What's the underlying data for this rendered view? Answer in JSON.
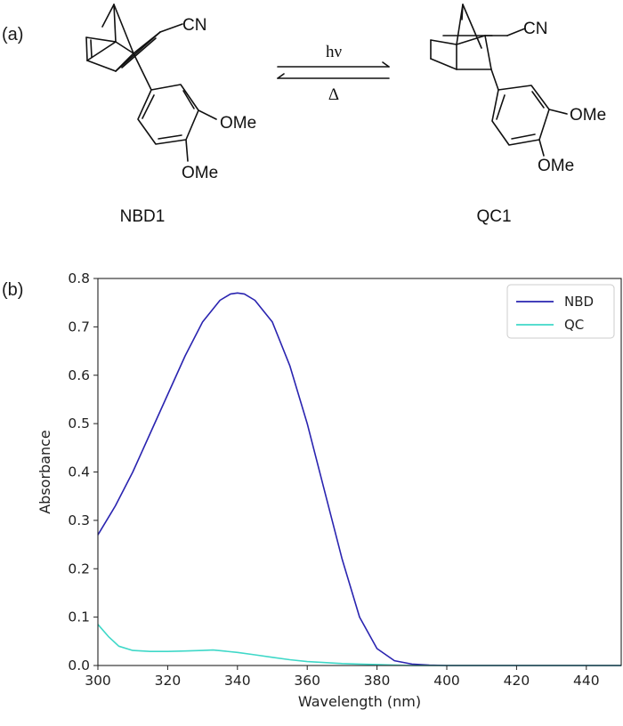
{
  "panel_a": {
    "label": "(a)",
    "left_molecule": {
      "name": "NBD1",
      "substituent_cn": "CN",
      "ome_top": "OMe",
      "ome_bottom": "OMe"
    },
    "right_molecule": {
      "name": "QC1",
      "substituent_cn": "CN",
      "ome_top": "OMe",
      "ome_bottom": "OMe"
    },
    "forward_label": "hν",
    "reverse_label": "Δ"
  },
  "panel_b": {
    "label": "(b)"
  },
  "chart_data": {
    "type": "line",
    "title": "",
    "xlabel": "Wavelength (nm)",
    "ylabel": "Absorbance",
    "xlim": [
      300,
      450
    ],
    "ylim": [
      0.0,
      0.8
    ],
    "xticks": [
      300,
      320,
      340,
      360,
      380,
      400,
      420,
      440
    ],
    "yticks": [
      0.0,
      0.1,
      0.2,
      0.3,
      0.4,
      0.5,
      0.6,
      0.7,
      0.8
    ],
    "legend_position": "top-right",
    "grid": false,
    "series": [
      {
        "name": "NBD",
        "color": "#2a24b0",
        "x": [
          300,
          305,
          310,
          315,
          320,
          325,
          330,
          335,
          338,
          340,
          342,
          345,
          350,
          355,
          360,
          365,
          370,
          375,
          380,
          385,
          390,
          395,
          400,
          410,
          420,
          430,
          440,
          450
        ],
        "y": [
          0.27,
          0.33,
          0.4,
          0.48,
          0.56,
          0.64,
          0.71,
          0.755,
          0.768,
          0.77,
          0.768,
          0.755,
          0.71,
          0.62,
          0.5,
          0.36,
          0.22,
          0.1,
          0.035,
          0.01,
          0.003,
          0.001,
          0.0,
          0.0,
          0.0,
          0.0,
          0.0,
          0.0
        ]
      },
      {
        "name": "QC",
        "color": "#3fd8c8",
        "x": [
          300,
          303,
          306,
          310,
          315,
          320,
          325,
          330,
          333,
          336,
          340,
          345,
          350,
          355,
          360,
          365,
          370,
          375,
          380,
          385,
          390,
          400,
          420,
          450
        ],
        "y": [
          0.085,
          0.06,
          0.04,
          0.031,
          0.029,
          0.029,
          0.03,
          0.031,
          0.032,
          0.03,
          0.027,
          0.022,
          0.017,
          0.012,
          0.008,
          0.006,
          0.004,
          0.003,
          0.002,
          0.001,
          0.0,
          0.0,
          0.0,
          0.0
        ]
      }
    ]
  }
}
